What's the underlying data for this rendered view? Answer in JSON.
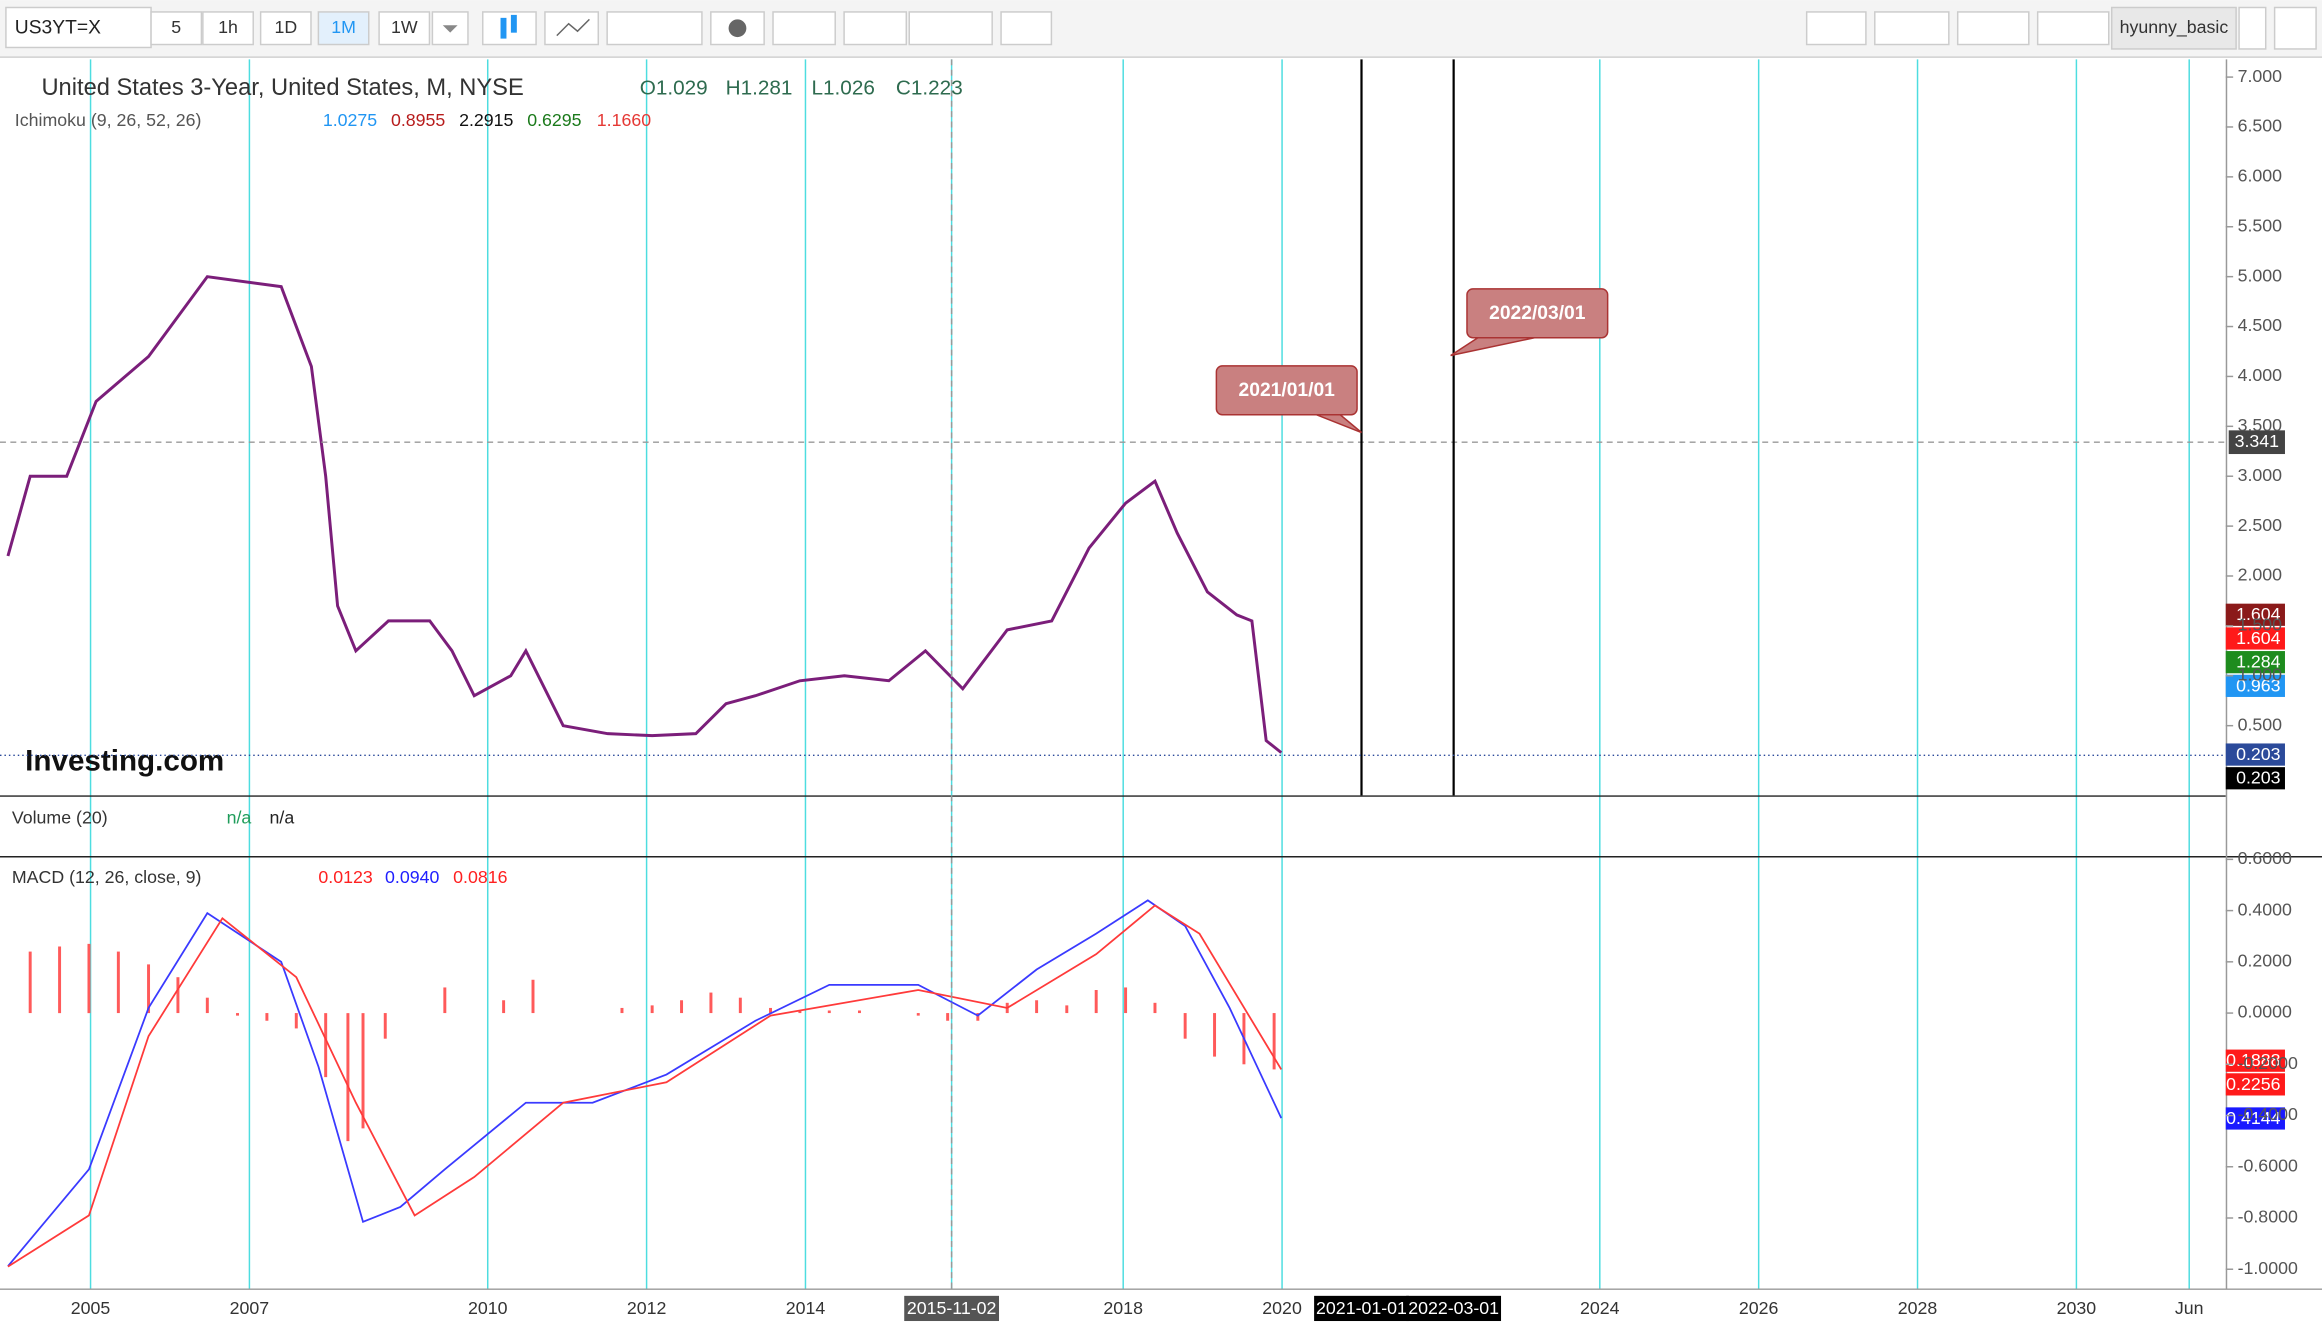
{
  "toolbar": {
    "symbol": "US3YT=X",
    "intervals": [
      "5",
      "1h",
      "1D",
      "1M",
      "1W"
    ],
    "active_interval": 3,
    "user": "hyunny_basic"
  },
  "watermark": "Investing.com",
  "volume_pane": {
    "title": "Volume (20)",
    "values": [
      "n/a",
      "n/a"
    ]
  },
  "chart_data": [
    {
      "type": "line",
      "title": "United States 3-Year, United States, M, NYSE",
      "ohlc": [
        "O1.029",
        "H1.281",
        "L1.026",
        "C1.223"
      ],
      "indicator": "Ichimoku (9, 26, 52, 26)",
      "indicator_values": [
        {
          "text": "1.0275",
          "color": "#2196f3"
        },
        {
          "text": "0.8955",
          "color": "#b71c1c"
        },
        {
          "text": "2.2915",
          "color": "#111111"
        },
        {
          "text": "0.6295",
          "color": "#1b7a1b"
        },
        {
          "text": "1.1660",
          "color": "#e53935"
        }
      ],
      "x": [
        2003.96,
        2004.24,
        2004.7,
        2005.07,
        2005.73,
        2006.47,
        2007.4,
        2007.78,
        2007.96,
        2008.11,
        2008.34,
        2008.75,
        2009.27,
        2009.55,
        2009.83,
        2010.29,
        2010.48,
        2010.95,
        2011.51,
        2012.07,
        2012.62,
        2013.0,
        2013.37,
        2013.93,
        2014.49,
        2015.05,
        2015.51,
        2015.98,
        2016.54,
        2017.1,
        2017.57,
        2018.03,
        2018.4,
        2018.68,
        2019.06,
        2019.43,
        2019.62,
        2019.8,
        2019.99
      ],
      "values": [
        2.2,
        3.0,
        3.0,
        3.75,
        4.2,
        5.0,
        4.9,
        4.1,
        3.0,
        1.7,
        1.25,
        1.55,
        1.55,
        1.25,
        0.8,
        1.0,
        1.25,
        0.5,
        0.42,
        0.4,
        0.42,
        0.72,
        0.8,
        0.95,
        1.0,
        0.95,
        1.25,
        0.87,
        1.46,
        1.55,
        2.28,
        2.73,
        2.95,
        2.43,
        1.84,
        1.61,
        1.55,
        0.35,
        0.23
      ],
      "color": "#7b1e7a",
      "xlim": [
        2003.86,
        2031.88
      ],
      "xticks": [
        2005,
        2007,
        2010,
        2012,
        2014,
        {
          "value": 2015.84,
          "label": "2015-11-02"
        },
        2018,
        2020,
        {
          "value": 2021.0,
          "label": "2021-01-01"
        },
        {
          "value": 2022.16,
          "label": "2022-03-01"
        },
        2024,
        2026,
        2028,
        2030,
        {
          "value": 2031.42,
          "label": "Jun"
        }
      ],
      "ylim": [
        -0.198,
        7.178
      ],
      "yticks": [
        {
          "value": 0.5,
          "label": "0.500"
        },
        {
          "value": 1.0,
          "label": "1.000"
        },
        {
          "value": 1.5,
          "label": "1.500"
        },
        {
          "value": 2.0,
          "label": "2.000"
        },
        {
          "value": 2.5,
          "label": "2.500"
        },
        {
          "value": 3.0,
          "label": "3.000"
        },
        {
          "value": 3.5,
          "label": "3.500"
        },
        {
          "value": 4.0,
          "label": "4.000"
        },
        {
          "value": 4.5,
          "label": "4.500"
        },
        {
          "value": 5.0,
          "label": "5.000"
        },
        {
          "value": 5.5,
          "label": "5.500"
        },
        {
          "value": 6.0,
          "label": "6.000"
        },
        {
          "value": 6.5,
          "label": "6.500"
        },
        {
          "value": 7.0,
          "label": "7.000"
        }
      ],
      "grid": true,
      "grid_color": "#4ddde0",
      "crosshair": {
        "x": 2015.84,
        "y": 3.341
      },
      "annotations": [
        {
          "text": "2021/01/01",
          "x": 2021.0
        },
        {
          "text": "2022/03/01",
          "x": 2022.16
        }
      ],
      "last_labels": [
        {
          "value": 1.604,
          "color": "#8b1a1a"
        },
        {
          "value": 1.604,
          "color": "#ff1a1a"
        },
        {
          "value": 1.284,
          "color": "#1e8c1e"
        },
        {
          "value": 0.963,
          "color": "#2196f3"
        },
        {
          "value": 0.203,
          "color": "#2b4a9a"
        },
        {
          "value": 0.203,
          "color": "#000000"
        }
      ]
    },
    {
      "type": "line",
      "title": "MACD (12, 26, close, 9)",
      "legend_values": [
        {
          "text": "0.0123",
          "color": "#ff2020"
        },
        {
          "text": "0.0940",
          "color": "#2020ff"
        },
        {
          "text": "0.0816",
          "color": "#ff2020"
        }
      ],
      "ylim": [
        -1.075,
        0.613
      ],
      "yticks": [
        {
          "value": 0.6,
          "label": "0.6000"
        },
        {
          "value": 0.4,
          "label": "0.4000"
        },
        {
          "value": 0.2,
          "label": "0.2000"
        },
        {
          "value": 0,
          "label": "0.0000"
        },
        {
          "value": -0.2,
          "label": "-0.2000"
        },
        {
          "value": -0.4,
          "label": "-0.4000"
        },
        {
          "value": -0.6,
          "label": "-0.6000"
        },
        {
          "value": -0.8,
          "label": "-0.8000"
        },
        {
          "value": -1.0,
          "label": "-1.0000"
        }
      ],
      "series": [
        {
          "kind": "bar",
          "color": "#ff5a5a",
          "x": [
            2004.24,
            2004.61,
            2004.98,
            2005.35,
            2005.73,
            2006.1,
            2006.47,
            2006.85,
            2007.22,
            2007.59,
            2007.96,
            2008.24,
            2008.43,
            2008.71,
            2009.08,
            2009.46,
            2009.83,
            2010.2,
            2010.57,
            2010.95,
            2011.32,
            2011.69,
            2012.07,
            2012.44,
            2012.81,
            2013.18,
            2013.56,
            2013.93,
            2014.3,
            2014.68,
            2015.05,
            2015.42,
            2015.79,
            2016.17,
            2016.54,
            2016.91,
            2017.29,
            2017.66,
            2018.03,
            2018.4,
            2018.78,
            2019.15,
            2019.52,
            2019.9
          ],
          "values": [
            0.24,
            0.26,
            0.27,
            0.24,
            0.19,
            0.14,
            0.06,
            -0.01,
            -0.03,
            -0.06,
            -0.25,
            -0.5,
            -0.45,
            -0.1,
            0.0,
            0.1,
            0.0,
            0.05,
            0.13,
            0.0,
            0.0,
            0.02,
            0.03,
            0.05,
            0.08,
            0.06,
            0.02,
            0.01,
            0.01,
            0.01,
            0.0,
            -0.01,
            -0.03,
            -0.03,
            0.04,
            0.05,
            0.03,
            0.09,
            0.1,
            0.04,
            -0.1,
            -0.17,
            -0.2,
            -0.22
          ]
        },
        {
          "kind": "line",
          "color": "#3a3aff",
          "x": [
            2003.96,
            2004.98,
            2005.73,
            2006.47,
            2007.4,
            2007.87,
            2008.43,
            2008.9,
            2009.46,
            2010.48,
            2011.32,
            2012.25,
            2013.37,
            2014.3,
            2015.42,
            2016.17,
            2016.91,
            2017.66,
            2018.31,
            2018.78,
            2019.34,
            2019.99
          ],
          "values": [
            -0.988,
            -0.61,
            0.02,
            0.39,
            0.2,
            -0.21,
            -0.815,
            -0.757,
            -0.61,
            -0.35,
            -0.35,
            -0.24,
            -0.03,
            0.11,
            0.11,
            -0.01,
            0.17,
            0.31,
            0.44,
            0.34,
            0.02,
            -0.41
          ]
        },
        {
          "kind": "line",
          "color": "#ff3a3a",
          "x": [
            2003.96,
            2004.98,
            2005.73,
            2006.66,
            2007.59,
            2008.34,
            2009.08,
            2009.83,
            2010.95,
            2012.25,
            2013.56,
            2015.42,
            2016.54,
            2017.66,
            2018.4,
            2018.96,
            2019.99
          ],
          "values": [
            -0.99,
            -0.79,
            -0.09,
            0.37,
            0.14,
            -0.35,
            -0.79,
            -0.64,
            -0.35,
            -0.27,
            -0.01,
            0.09,
            0.02,
            0.23,
            0.42,
            0.31,
            -0.22
          ]
        }
      ],
      "last_labels": [
        {
          "value": -0.1888,
          "color": "#ff1a1a"
        },
        {
          "value": -0.2256,
          "color": "#ff1a1a"
        },
        {
          "value": -0.4144,
          "color": "#1a1aff"
        }
      ]
    }
  ]
}
